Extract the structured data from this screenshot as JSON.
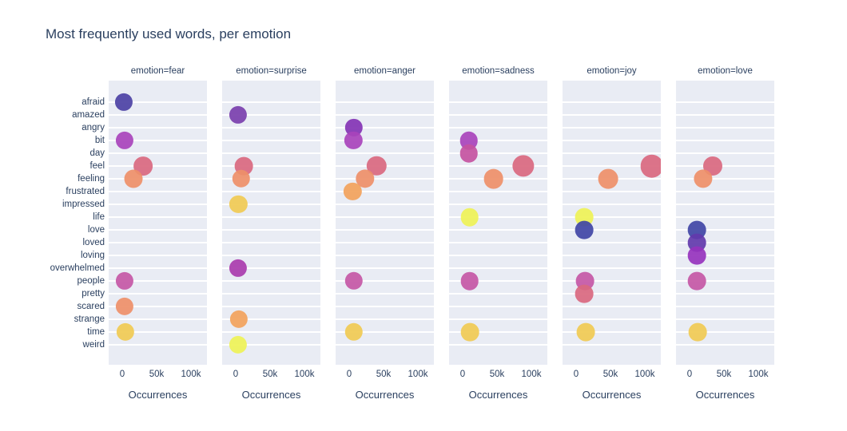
{
  "title": "Most frequently used words, per emotion",
  "chart_data": {
    "type": "scatter",
    "title": "Most frequently used words, per emotion",
    "xlabel": "Occurrences",
    "ylabel": "",
    "grid": true,
    "legend": false,
    "x_ticks": [
      {
        "label": "0",
        "value": 0
      },
      {
        "label": "50k",
        "value": 50000
      },
      {
        "label": "100k",
        "value": 100000
      }
    ],
    "xlim": [
      -20000,
      123000
    ],
    "categories": [
      "afraid",
      "amazed",
      "angry",
      "bit",
      "day",
      "feel",
      "feeling",
      "frustrated",
      "impressed",
      "life",
      "love",
      "loved",
      "loving",
      "overwhelmed",
      "people",
      "pretty",
      "scared",
      "strange",
      "time",
      "weird"
    ],
    "word_colors": {
      "afraid": "#4c41a4",
      "amazed": "#7a3fad",
      "angry": "#8333b4",
      "bit": "#a843bb",
      "day": "#c4539f",
      "feel": "#d9687f",
      "feeling": "#ee8f68",
      "frustrated": "#f2a25b",
      "impressed": "#f0ca52",
      "life": "#eef256",
      "love": "#4045a5",
      "loved": "#6239ab",
      "loving": "#9633bd",
      "overwhelmed": "#a93bac",
      "people": "#c457a5",
      "pretty": "#d9687f",
      "scared": "#ee8f68",
      "strange": "#f2a25b",
      "time": "#f0ca52",
      "weird": "#eef256"
    },
    "facets": [
      {
        "label": "emotion=fear",
        "points": [
          {
            "word": "afraid",
            "value": 2500
          },
          {
            "word": "bit",
            "value": 3000
          },
          {
            "word": "feel",
            "value": 30000
          },
          {
            "word": "feeling",
            "value": 16000
          },
          {
            "word": "people",
            "value": 3000
          },
          {
            "word": "scared",
            "value": 3500
          },
          {
            "word": "time",
            "value": 4500
          }
        ]
      },
      {
        "label": "emotion=surprise",
        "points": [
          {
            "word": "amazed",
            "value": 3000
          },
          {
            "word": "feel",
            "value": 12000
          },
          {
            "word": "feeling",
            "value": 8000
          },
          {
            "word": "impressed",
            "value": 4000
          },
          {
            "word": "overwhelmed",
            "value": 3000
          },
          {
            "word": "strange",
            "value": 4500
          },
          {
            "word": "weird",
            "value": 3500
          }
        ]
      },
      {
        "label": "emotion=anger",
        "points": [
          {
            "word": "angry",
            "value": 6500
          },
          {
            "word": "bit",
            "value": 6000
          },
          {
            "word": "feel",
            "value": 40000
          },
          {
            "word": "feeling",
            "value": 23000
          },
          {
            "word": "frustrated",
            "value": 5000
          },
          {
            "word": "people",
            "value": 7000
          },
          {
            "word": "time",
            "value": 7000
          }
        ]
      },
      {
        "label": "emotion=sadness",
        "points": [
          {
            "word": "bit",
            "value": 9000
          },
          {
            "word": "day",
            "value": 9000
          },
          {
            "word": "feel",
            "value": 88000
          },
          {
            "word": "feeling",
            "value": 45000
          },
          {
            "word": "life",
            "value": 10000
          },
          {
            "word": "people",
            "value": 10000
          },
          {
            "word": "time",
            "value": 11000
          }
        ]
      },
      {
        "label": "emotion=joy",
        "points": [
          {
            "word": "feel",
            "value": 110000
          },
          {
            "word": "feeling",
            "value": 47000
          },
          {
            "word": "life",
            "value": 12000
          },
          {
            "word": "love",
            "value": 12000
          },
          {
            "word": "people",
            "value": 13000
          },
          {
            "word": "pretty",
            "value": 12000
          },
          {
            "word": "time",
            "value": 14000
          }
        ]
      },
      {
        "label": "emotion=love",
        "points": [
          {
            "word": "feel",
            "value": 34000
          },
          {
            "word": "feeling",
            "value": 20000
          },
          {
            "word": "love",
            "value": 11000
          },
          {
            "word": "loved",
            "value": 11000
          },
          {
            "word": "loving",
            "value": 11000
          },
          {
            "word": "people",
            "value": 11000
          },
          {
            "word": "time",
            "value": 11500
          }
        ]
      }
    ]
  }
}
